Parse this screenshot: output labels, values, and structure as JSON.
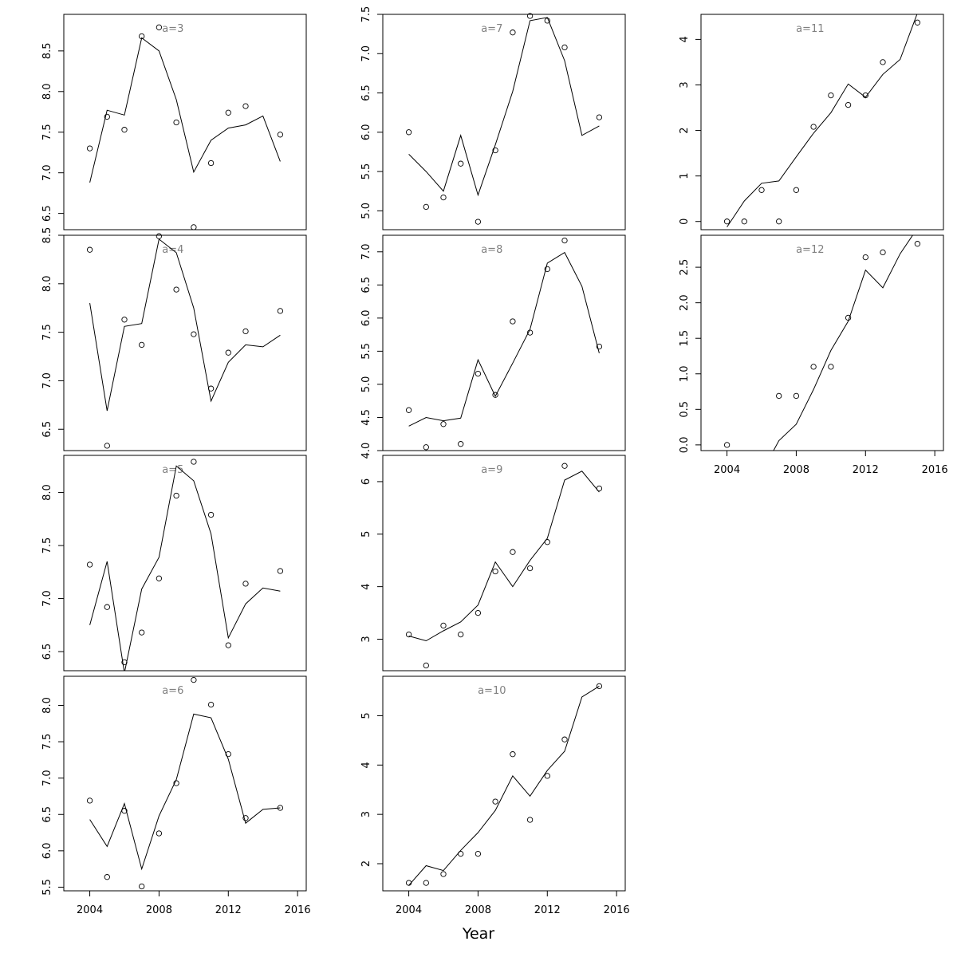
{
  "figure": {
    "xlabel": "Year",
    "colors": {
      "line": "#000000",
      "points": "#000000",
      "frame": "#000000",
      "panel_title": "#808080"
    }
  },
  "chart_data": [
    {
      "type": "line",
      "title": "a=3",
      "ylim": [
        6.3,
        8.95
      ],
      "yticks": [
        6.5,
        7.0,
        7.5,
        8.0,
        8.5
      ],
      "yticklabels": [
        "6.5",
        "7.0",
        "7.5",
        "8.0",
        "8.5"
      ],
      "xlim": [
        2002.5,
        2016.5
      ],
      "xticks": [],
      "xticklabels": [],
      "observed": {
        "x": [
          2004,
          2005,
          2006,
          2007,
          2008,
          2009,
          2010,
          2011,
          2012,
          2013,
          2015
        ],
        "y": [
          7.3,
          7.69,
          7.53,
          8.68,
          8.79,
          7.62,
          6.33,
          7.12,
          7.74,
          7.82,
          7.47
        ]
      },
      "fitted": {
        "x": [
          2004,
          2005,
          2006,
          2007,
          2008,
          2009,
          2010,
          2011,
          2012,
          2013,
          2014,
          2015
        ],
        "y": [
          6.88,
          7.77,
          7.71,
          8.66,
          8.5,
          7.9,
          7.01,
          7.4,
          7.55,
          7.59,
          7.7,
          7.14
        ]
      }
    },
    {
      "type": "line",
      "title": "a=4",
      "ylim": [
        6.28,
        8.5
      ],
      "yticks": [
        6.5,
        7.0,
        7.5,
        8.0,
        8.5
      ],
      "yticklabels": [
        "6.5",
        "7.0",
        "7.5",
        "8.0",
        "8.5"
      ],
      "xlim": [
        2002.5,
        2016.5
      ],
      "xticks": [],
      "xticklabels": [],
      "observed": {
        "x": [
          2004,
          2005,
          2006,
          2007,
          2008,
          2009,
          2010,
          2011,
          2012,
          2013,
          2015
        ],
        "y": [
          8.35,
          6.33,
          7.63,
          7.37,
          8.49,
          7.94,
          7.48,
          6.92,
          7.29,
          7.51,
          7.72
        ]
      },
      "fitted": {
        "x": [
          2004,
          2005,
          2006,
          2007,
          2008,
          2009,
          2010,
          2011,
          2012,
          2013,
          2014,
          2015
        ],
        "y": [
          7.8,
          6.69,
          7.56,
          7.59,
          8.46,
          8.32,
          7.75,
          6.79,
          7.19,
          7.37,
          7.35,
          7.47
        ]
      }
    },
    {
      "type": "line",
      "title": "a=5",
      "ylim": [
        6.32,
        8.35
      ],
      "yticks": [
        6.5,
        7.0,
        7.5,
        8.0
      ],
      "yticklabels": [
        "6.5",
        "7.0",
        "7.5",
        "8.0"
      ],
      "xlim": [
        2002.5,
        2016.5
      ],
      "xticks": [],
      "xticklabels": [],
      "observed": {
        "x": [
          2004,
          2005,
          2006,
          2007,
          2008,
          2009,
          2010,
          2011,
          2012,
          2013,
          2015
        ],
        "y": [
          7.32,
          6.92,
          6.4,
          6.68,
          7.19,
          7.97,
          8.29,
          7.79,
          6.56,
          7.14,
          7.26
        ]
      },
      "fitted": {
        "x": [
          2004,
          2005,
          2006,
          2007,
          2008,
          2009,
          2010,
          2011,
          2012,
          2013,
          2014,
          2015
        ],
        "y": [
          6.75,
          7.35,
          6.3,
          7.09,
          7.39,
          8.25,
          8.11,
          7.61,
          6.63,
          6.95,
          7.1,
          7.07
        ]
      }
    },
    {
      "type": "line",
      "title": "a=6",
      "ylim": [
        5.45,
        8.4
      ],
      "yticks": [
        5.5,
        6.0,
        6.5,
        7.0,
        7.5,
        8.0
      ],
      "yticklabels": [
        "5.5",
        "6.0",
        "6.5",
        "7.0",
        "7.5",
        "8.0"
      ],
      "xlim": [
        2002.5,
        2016.5
      ],
      "xticks": [
        2004,
        2008,
        2012,
        2016
      ],
      "xticklabels": [
        "2004",
        "2008",
        "2012",
        "2016"
      ],
      "observed": {
        "x": [
          2004,
          2005,
          2006,
          2007,
          2008,
          2009,
          2010,
          2011,
          2012,
          2013,
          2015
        ],
        "y": [
          6.69,
          5.64,
          6.55,
          5.51,
          6.24,
          6.93,
          8.35,
          8.01,
          7.33,
          6.45,
          6.59
        ]
      },
      "fitted": {
        "x": [
          2004,
          2005,
          2006,
          2007,
          2008,
          2009,
          2010,
          2011,
          2012,
          2013,
          2014,
          2015
        ],
        "y": [
          6.43,
          6.06,
          6.65,
          5.75,
          6.48,
          6.98,
          7.88,
          7.83,
          7.26,
          6.38,
          6.57,
          6.59
        ]
      }
    },
    {
      "type": "line",
      "title": "a=7",
      "ylim": [
        4.76,
        7.5
      ],
      "yticks": [
        5.0,
        5.5,
        6.0,
        6.5,
        7.0,
        7.5
      ],
      "yticklabels": [
        "5.0",
        "5.5",
        "6.0",
        "6.5",
        "7.0",
        "7.5"
      ],
      "xlim": [
        2002.5,
        2016.5
      ],
      "xticks": [],
      "xticklabels": [],
      "observed": {
        "x": [
          2004,
          2005,
          2006,
          2007,
          2008,
          2009,
          2010,
          2011,
          2012,
          2013,
          2015
        ],
        "y": [
          6.0,
          5.05,
          5.17,
          5.6,
          4.86,
          5.77,
          7.27,
          7.48,
          7.42,
          7.08,
          6.19
        ]
      },
      "fitted": {
        "x": [
          2004,
          2005,
          2006,
          2007,
          2008,
          2009,
          2010,
          2011,
          2012,
          2013,
          2014,
          2015
        ],
        "y": [
          5.72,
          5.5,
          5.25,
          5.96,
          5.2,
          5.84,
          6.52,
          7.42,
          7.46,
          6.91,
          5.96,
          6.08
        ]
      }
    },
    {
      "type": "line",
      "title": "a=8",
      "ylim": [
        4.0,
        7.25
      ],
      "yticks": [
        4.0,
        4.5,
        5.0,
        5.5,
        6.0,
        6.5,
        7.0
      ],
      "yticklabels": [
        "4.0",
        "4.5",
        "5.0",
        "5.5",
        "6.0",
        "6.5",
        "7.0"
      ],
      "xlim": [
        2002.5,
        2016.5
      ],
      "xticks": [],
      "xticklabels": [],
      "observed": {
        "x": [
          2004,
          2005,
          2006,
          2007,
          2008,
          2009,
          2010,
          2011,
          2012,
          2013,
          2015
        ],
        "y": [
          4.61,
          4.05,
          4.4,
          4.1,
          5.16,
          4.84,
          5.95,
          5.78,
          6.74,
          7.17,
          5.57
        ]
      },
      "fitted": {
        "x": [
          2004,
          2005,
          2006,
          2007,
          2008,
          2009,
          2010,
          2011,
          2012,
          2013,
          2014,
          2015
        ],
        "y": [
          4.37,
          4.5,
          4.45,
          4.49,
          5.37,
          4.82,
          5.32,
          5.83,
          6.83,
          6.99,
          6.48,
          5.47
        ]
      }
    },
    {
      "type": "line",
      "title": "a=9",
      "ylim": [
        2.4,
        6.5
      ],
      "yticks": [
        3,
        4,
        5,
        6
      ],
      "yticklabels": [
        "3",
        "4",
        "5",
        "6"
      ],
      "xlim": [
        2002.5,
        2016.5
      ],
      "xticks": [],
      "xticklabels": [],
      "observed": {
        "x": [
          2004,
          2005,
          2006,
          2007,
          2008,
          2009,
          2010,
          2011,
          2012,
          2013,
          2015
        ],
        "y": [
          3.09,
          2.5,
          3.26,
          3.09,
          3.5,
          4.29,
          4.66,
          4.35,
          4.85,
          6.3,
          5.87
        ]
      },
      "fitted": {
        "x": [
          2004,
          2005,
          2006,
          2007,
          2008,
          2009,
          2010,
          2011,
          2012,
          2013,
          2014,
          2015
        ],
        "y": [
          3.06,
          2.97,
          3.16,
          3.33,
          3.65,
          4.47,
          4.0,
          4.5,
          4.92,
          6.03,
          6.2,
          5.8
        ]
      }
    },
    {
      "type": "line",
      "title": "a=10",
      "ylim": [
        1.45,
        5.8
      ],
      "yticks": [
        2,
        3,
        4,
        5
      ],
      "yticklabels": [
        "2",
        "3",
        "4",
        "5"
      ],
      "xlim": [
        2002.5,
        2016.5
      ],
      "xticks": [
        2004,
        2008,
        2012,
        2016
      ],
      "xticklabels": [
        "2004",
        "2008",
        "2012",
        "2016"
      ],
      "observed": {
        "x": [
          2004,
          2005,
          2006,
          2007,
          2008,
          2009,
          2010,
          2011,
          2012,
          2013,
          2015
        ],
        "y": [
          1.61,
          1.61,
          1.79,
          2.2,
          2.2,
          3.26,
          4.22,
          2.89,
          3.78,
          4.52,
          5.6
        ]
      },
      "fitted": {
        "x": [
          2004,
          2005,
          2006,
          2007,
          2008,
          2009,
          2010,
          2011,
          2012,
          2013,
          2014,
          2015
        ],
        "y": [
          1.56,
          1.96,
          1.86,
          2.27,
          2.63,
          3.08,
          3.78,
          3.37,
          3.89,
          4.28,
          5.38,
          5.6
        ]
      }
    },
    {
      "type": "line",
      "title": "a=11",
      "ylim": [
        -0.18,
        4.55
      ],
      "yticks": [
        0,
        1,
        2,
        3,
        4
      ],
      "yticklabels": [
        "0",
        "1",
        "2",
        "3",
        "4"
      ],
      "xlim": [
        2002.5,
        2016.5
      ],
      "xticks": [],
      "xticklabels": [],
      "observed": {
        "x": [
          2004,
          2005,
          2006,
          2007,
          2008,
          2009,
          2010,
          2011,
          2012,
          2013,
          2015
        ],
        "y": [
          0.0,
          0.0,
          0.69,
          0.0,
          0.69,
          2.08,
          2.77,
          2.56,
          2.77,
          3.5,
          4.37
        ]
      },
      "fitted": {
        "x": [
          2004,
          2005,
          2006,
          2007,
          2008,
          2009,
          2010,
          2011,
          2012,
          2013,
          2014,
          2015
        ],
        "y": [
          -0.12,
          0.45,
          0.84,
          0.89,
          1.42,
          1.94,
          2.39,
          3.02,
          2.73,
          3.23,
          3.56,
          4.58
        ]
      }
    },
    {
      "type": "line",
      "title": "a=12",
      "ylim": [
        -0.08,
        2.95
      ],
      "yticks": [
        0.0,
        0.5,
        1.0,
        1.5,
        2.0,
        2.5
      ],
      "yticklabels": [
        "0.0",
        "0.5",
        "1.0",
        "1.5",
        "2.0",
        "2.5"
      ],
      "xlim": [
        2002.5,
        2016.5
      ],
      "xticks": [
        2004,
        2008,
        2012,
        2016
      ],
      "xticklabels": [
        "2004",
        "2008",
        "2012",
        "2016"
      ],
      "observed": {
        "x": [
          2004,
          2005,
          2006,
          2007,
          2008,
          2009,
          2010,
          2011,
          2012,
          2013,
          2015
        ],
        "y": [
          0.0,
          null,
          null,
          0.69,
          0.69,
          1.1,
          1.1,
          1.79,
          2.64,
          2.71,
          2.83
        ]
      },
      "fitted": {
        "x": [
          2006.2,
          2007,
          2008,
          2009,
          2010,
          2011,
          2012,
          2013,
          2014,
          2015
        ],
        "y": [
          -0.3,
          0.06,
          0.29,
          0.78,
          1.33,
          1.74,
          2.46,
          2.21,
          2.69,
          3.05
        ]
      }
    }
  ]
}
